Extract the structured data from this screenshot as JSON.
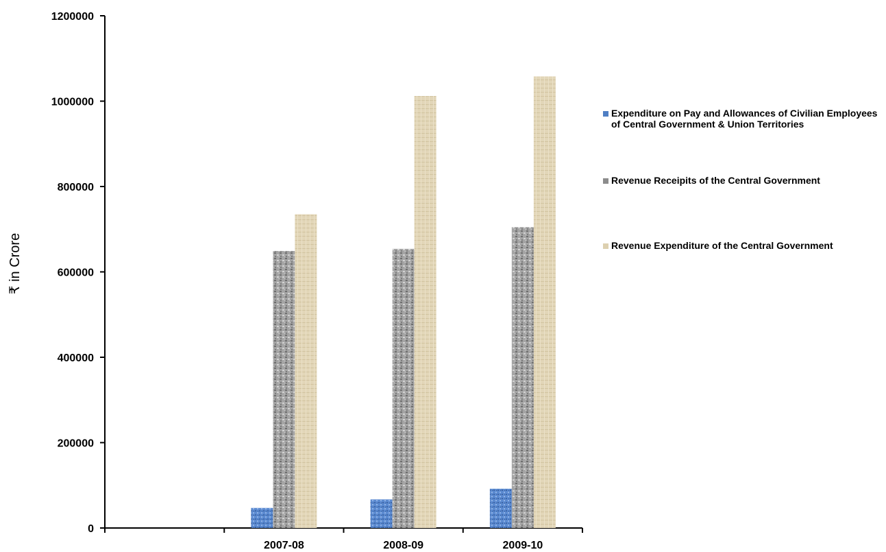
{
  "chart_data": {
    "type": "bar",
    "categories": [
      "",
      "2007-08",
      "2008-09",
      "2009-10"
    ],
    "series": [
      {
        "name": "Expenditure on Pay and Allowances of Civilian Employees of Central Government & Union Territories",
        "values": [
          null,
          47000,
          67000,
          92000
        ],
        "color": "#4f7fc4"
      },
      {
        "name": "Revenue Receipits of the Central Government",
        "values": [
          null,
          649000,
          654000,
          705000
        ],
        "color": "#8c8c8c"
      },
      {
        "name": "Revenue Expenditure of the Central Government",
        "values": [
          null,
          735000,
          1012000,
          1058000
        ],
        "color": "#ddd0b0"
      }
    ],
    "ylabel": "₹ in Crore",
    "ylim": [
      0,
      1200000
    ],
    "yticks": [
      0,
      200000,
      400000,
      600000,
      800000,
      1000000,
      1200000
    ],
    "ytick_labels": [
      "0",
      "200000",
      "400000",
      "600000",
      "800000",
      "1000000",
      "1200000"
    ],
    "grid": false,
    "legend_position": "right"
  }
}
